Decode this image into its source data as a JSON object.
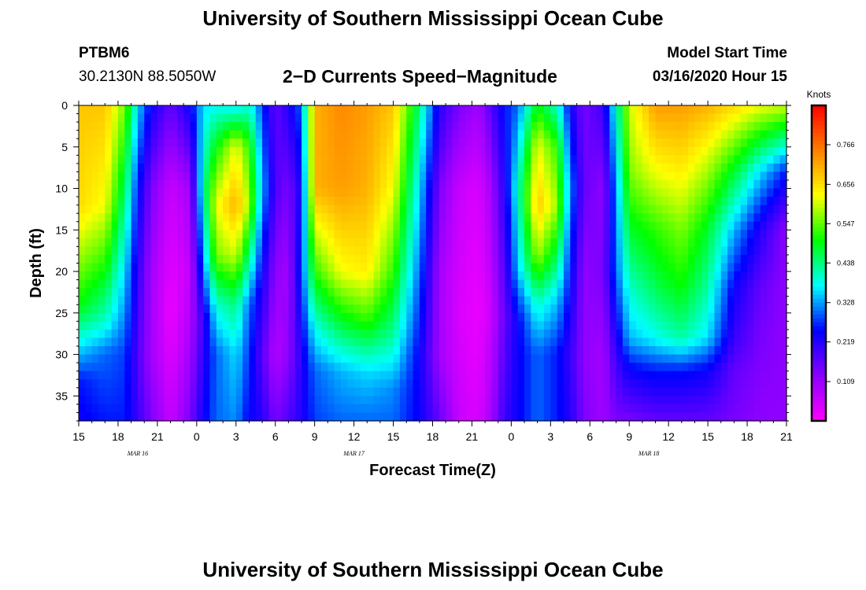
{
  "page": {
    "title_top": "University of Southern Mississippi Ocean Cube",
    "title_bottom": "University of Southern Mississippi Ocean Cube",
    "station_id": "PTBM6",
    "station_coords": "30.2130N 88.5050W",
    "model_start_label": "Model Start Time",
    "model_start_value": "03/16/2020 Hour 15"
  },
  "chart_data": {
    "type": "heatmap",
    "title": "2−D Currents Speed−Magnitude",
    "xlabel": "Forecast Time(Z)",
    "ylabel": "Depth (ft)",
    "x_tick_labels": [
      "15",
      "18",
      "21",
      "0",
      "3",
      "6",
      "9",
      "12",
      "15",
      "18",
      "21",
      "0",
      "3",
      "6",
      "9",
      "12",
      "15",
      "18",
      "21"
    ],
    "x_range_hours": [
      0,
      54
    ],
    "date_labels": [
      {
        "label": "MAR 16",
        "hour": 4.5
      },
      {
        "label": "MAR 17",
        "hour": 21
      },
      {
        "label": "MAR 18",
        "hour": 43.5
      }
    ],
    "y_tick_labels": [
      "0",
      "5",
      "10",
      "15",
      "20",
      "25",
      "30",
      "35"
    ],
    "y_range_ft": [
      0,
      38
    ],
    "y_inverted": true,
    "colorbar": {
      "unit_label": "Knots",
      "tick_labels": [
        "0.766",
        "0.656",
        "0.547",
        "0.438",
        "0.328",
        "0.219",
        "0.109"
      ],
      "tick_values": [
        0.766,
        0.656,
        0.547,
        0.438,
        0.328,
        0.219,
        0.109
      ],
      "range": [
        0,
        0.875
      ],
      "colors": [
        "#ff00ff",
        "#8a00ff",
        "#0000ff",
        "#00ffff",
        "#00ff00",
        "#ffff00",
        "#ff7f00",
        "#ff0000"
      ]
    },
    "columns": [
      {
        "hour": 0,
        "profile": [
          [
            0,
            0.68
          ],
          [
            12,
            0.66
          ],
          [
            24,
            0.5
          ],
          [
            30,
            0.34
          ],
          [
            33,
            0.26
          ],
          [
            38,
            0.24
          ]
        ]
      },
      {
        "hour": 2,
        "profile": [
          [
            0,
            0.68
          ],
          [
            12,
            0.62
          ],
          [
            20,
            0.5
          ],
          [
            26,
            0.4
          ],
          [
            30,
            0.3
          ],
          [
            38,
            0.26
          ]
        ]
      },
      {
        "hour": 3.5,
        "profile": [
          [
            0,
            0.56
          ],
          [
            10,
            0.46
          ],
          [
            20,
            0.36
          ],
          [
            30,
            0.28
          ],
          [
            38,
            0.26
          ]
        ]
      },
      {
        "hour": 4.5,
        "profile": [
          [
            0,
            0.36
          ],
          [
            10,
            0.26
          ],
          [
            20,
            0.21
          ],
          [
            30,
            0.18
          ],
          [
            38,
            0.2
          ]
        ]
      },
      {
        "hour": 5.5,
        "profile": [
          [
            0,
            0.24
          ],
          [
            10,
            0.14
          ],
          [
            20,
            0.1
          ],
          [
            30,
            0.1
          ],
          [
            38,
            0.14
          ]
        ]
      },
      {
        "hour": 7,
        "profile": [
          [
            0,
            0.16
          ],
          [
            10,
            0.06
          ],
          [
            25,
            0.02
          ],
          [
            38,
            0.06
          ]
        ]
      },
      {
        "hour": 8.5,
        "profile": [
          [
            0,
            0.24
          ],
          [
            10,
            0.1
          ],
          [
            20,
            0.06
          ],
          [
            30,
            0.1
          ],
          [
            38,
            0.14
          ]
        ]
      },
      {
        "hour": 9.5,
        "profile": [
          [
            0,
            0.36
          ],
          [
            10,
            0.42
          ],
          [
            20,
            0.3
          ],
          [
            26,
            0.2
          ],
          [
            38,
            0.24
          ]
        ]
      },
      {
        "hour": 10.5,
        "profile": [
          [
            0,
            0.38
          ],
          [
            5,
            0.5
          ],
          [
            12,
            0.62
          ],
          [
            18,
            0.56
          ],
          [
            24,
            0.4
          ],
          [
            30,
            0.3
          ],
          [
            38,
            0.3
          ]
        ]
      },
      {
        "hour": 12,
        "profile": [
          [
            0,
            0.36
          ],
          [
            5,
            0.62
          ],
          [
            12,
            0.7
          ],
          [
            18,
            0.6
          ],
          [
            24,
            0.44
          ],
          [
            30,
            0.36
          ],
          [
            38,
            0.32
          ]
        ]
      },
      {
        "hour": 13,
        "profile": [
          [
            0,
            0.4
          ],
          [
            5,
            0.52
          ],
          [
            12,
            0.58
          ],
          [
            18,
            0.44
          ],
          [
            24,
            0.3
          ],
          [
            38,
            0.24
          ]
        ]
      },
      {
        "hour": 14,
        "profile": [
          [
            0,
            0.28
          ],
          [
            10,
            0.34
          ],
          [
            20,
            0.24
          ],
          [
            30,
            0.17
          ],
          [
            38,
            0.22
          ]
        ]
      },
      {
        "hour": 15,
        "profile": [
          [
            0,
            0.16
          ],
          [
            10,
            0.18
          ],
          [
            20,
            0.12
          ],
          [
            30,
            0.08
          ],
          [
            38,
            0.14
          ]
        ]
      },
      {
        "hour": 16,
        "profile": [
          [
            0,
            0.22
          ],
          [
            10,
            0.14
          ],
          [
            20,
            0.1
          ],
          [
            30,
            0.12
          ],
          [
            38,
            0.18
          ]
        ]
      },
      {
        "hour": 17,
        "profile": [
          [
            0,
            0.3
          ],
          [
            10,
            0.24
          ],
          [
            20,
            0.28
          ],
          [
            30,
            0.22
          ],
          [
            38,
            0.22
          ]
        ]
      },
      {
        "hour": 18,
        "profile": [
          [
            0,
            0.7
          ],
          [
            10,
            0.7
          ],
          [
            20,
            0.52
          ],
          [
            26,
            0.4
          ],
          [
            32,
            0.3
          ],
          [
            38,
            0.28
          ]
        ]
      },
      {
        "hour": 20,
        "profile": [
          [
            0,
            0.74
          ],
          [
            10,
            0.72
          ],
          [
            20,
            0.62
          ],
          [
            26,
            0.48
          ],
          [
            32,
            0.34
          ],
          [
            38,
            0.3
          ]
        ]
      },
      {
        "hour": 22,
        "profile": [
          [
            0,
            0.72
          ],
          [
            10,
            0.7
          ],
          [
            20,
            0.64
          ],
          [
            26,
            0.52
          ],
          [
            32,
            0.36
          ],
          [
            38,
            0.3
          ]
        ]
      },
      {
        "hour": 24,
        "profile": [
          [
            0,
            0.68
          ],
          [
            10,
            0.62
          ],
          [
            20,
            0.52
          ],
          [
            28,
            0.42
          ],
          [
            34,
            0.32
          ],
          [
            38,
            0.3
          ]
        ]
      },
      {
        "hour": 26,
        "profile": [
          [
            0,
            0.44
          ],
          [
            10,
            0.36
          ],
          [
            20,
            0.3
          ],
          [
            30,
            0.24
          ],
          [
            38,
            0.24
          ]
        ]
      },
      {
        "hour": 27.5,
        "profile": [
          [
            0,
            0.22
          ],
          [
            10,
            0.14
          ],
          [
            20,
            0.1
          ],
          [
            30,
            0.1
          ],
          [
            38,
            0.16
          ]
        ]
      },
      {
        "hour": 29,
        "profile": [
          [
            0,
            0.14
          ],
          [
            10,
            0.06
          ],
          [
            25,
            0.04
          ],
          [
            38,
            0.06
          ]
        ]
      },
      {
        "hour": 30.5,
        "profile": [
          [
            0,
            0.1
          ],
          [
            10,
            0.04
          ],
          [
            25,
            0.02
          ],
          [
            38,
            0.04
          ]
        ]
      },
      {
        "hour": 31.5,
        "profile": [
          [
            0,
            0.18
          ],
          [
            10,
            0.1
          ],
          [
            25,
            0.06
          ],
          [
            38,
            0.1
          ]
        ]
      },
      {
        "hour": 32.5,
        "profile": [
          [
            0,
            0.26
          ],
          [
            10,
            0.22
          ],
          [
            25,
            0.16
          ],
          [
            38,
            0.2
          ]
        ]
      },
      {
        "hour": 33.5,
        "profile": [
          [
            0,
            0.3
          ],
          [
            10,
            0.4
          ],
          [
            20,
            0.34
          ],
          [
            26,
            0.24
          ],
          [
            38,
            0.24
          ]
        ]
      },
      {
        "hour": 35,
        "profile": [
          [
            0,
            0.5
          ],
          [
            5,
            0.62
          ],
          [
            12,
            0.68
          ],
          [
            18,
            0.58
          ],
          [
            24,
            0.4
          ],
          [
            30,
            0.3
          ],
          [
            38,
            0.3
          ]
        ]
      },
      {
        "hour": 36.5,
        "profile": [
          [
            0,
            0.4
          ],
          [
            5,
            0.52
          ],
          [
            12,
            0.58
          ],
          [
            18,
            0.46
          ],
          [
            24,
            0.34
          ],
          [
            30,
            0.26
          ],
          [
            38,
            0.26
          ]
        ]
      },
      {
        "hour": 37.5,
        "profile": [
          [
            0,
            0.24
          ],
          [
            10,
            0.32
          ],
          [
            20,
            0.26
          ],
          [
            30,
            0.2
          ],
          [
            38,
            0.22
          ]
        ]
      },
      {
        "hour": 38.5,
        "profile": [
          [
            0,
            0.14
          ],
          [
            10,
            0.16
          ],
          [
            20,
            0.12
          ],
          [
            30,
            0.12
          ],
          [
            38,
            0.14
          ]
        ]
      },
      {
        "hour": 40,
        "profile": [
          [
            0,
            0.2
          ],
          [
            10,
            0.12
          ],
          [
            20,
            0.14
          ],
          [
            30,
            0.1
          ],
          [
            38,
            0.1
          ]
        ]
      },
      {
        "hour": 41,
        "profile": [
          [
            0,
            0.4
          ],
          [
            10,
            0.32
          ],
          [
            20,
            0.3
          ],
          [
            30,
            0.2
          ],
          [
            38,
            0.14
          ]
        ]
      },
      {
        "hour": 42,
        "profile": [
          [
            0,
            0.6
          ],
          [
            8,
            0.56
          ],
          [
            15,
            0.48
          ],
          [
            22,
            0.4
          ],
          [
            28,
            0.34
          ],
          [
            32,
            0.24
          ],
          [
            38,
            0.14
          ]
        ]
      },
      {
        "hour": 44,
        "profile": [
          [
            0,
            0.72
          ],
          [
            8,
            0.62
          ],
          [
            15,
            0.52
          ],
          [
            22,
            0.46
          ],
          [
            28,
            0.38
          ],
          [
            32,
            0.26
          ],
          [
            38,
            0.16
          ]
        ]
      },
      {
        "hour": 46,
        "profile": [
          [
            0,
            0.72
          ],
          [
            8,
            0.64
          ],
          [
            15,
            0.56
          ],
          [
            22,
            0.5
          ],
          [
            28,
            0.42
          ],
          [
            32,
            0.26
          ],
          [
            38,
            0.16
          ]
        ]
      },
      {
        "hour": 48,
        "profile": [
          [
            0,
            0.7
          ],
          [
            8,
            0.58
          ],
          [
            15,
            0.48
          ],
          [
            22,
            0.42
          ],
          [
            28,
            0.36
          ],
          [
            32,
            0.24
          ],
          [
            38,
            0.16
          ]
        ]
      },
      {
        "hour": 50,
        "profile": [
          [
            0,
            0.66
          ],
          [
            8,
            0.48
          ],
          [
            15,
            0.34
          ],
          [
            22,
            0.24
          ],
          [
            28,
            0.2
          ],
          [
            32,
            0.16
          ],
          [
            38,
            0.14
          ]
        ]
      },
      {
        "hour": 52,
        "profile": [
          [
            0,
            0.62
          ],
          [
            8,
            0.36
          ],
          [
            15,
            0.22
          ],
          [
            22,
            0.16
          ],
          [
            28,
            0.14
          ],
          [
            38,
            0.12
          ]
        ]
      },
      {
        "hour": 54,
        "profile": [
          [
            0,
            0.6
          ],
          [
            8,
            0.26
          ],
          [
            15,
            0.12
          ],
          [
            22,
            0.12
          ],
          [
            28,
            0.12
          ],
          [
            38,
            0.12
          ]
        ]
      }
    ]
  }
}
